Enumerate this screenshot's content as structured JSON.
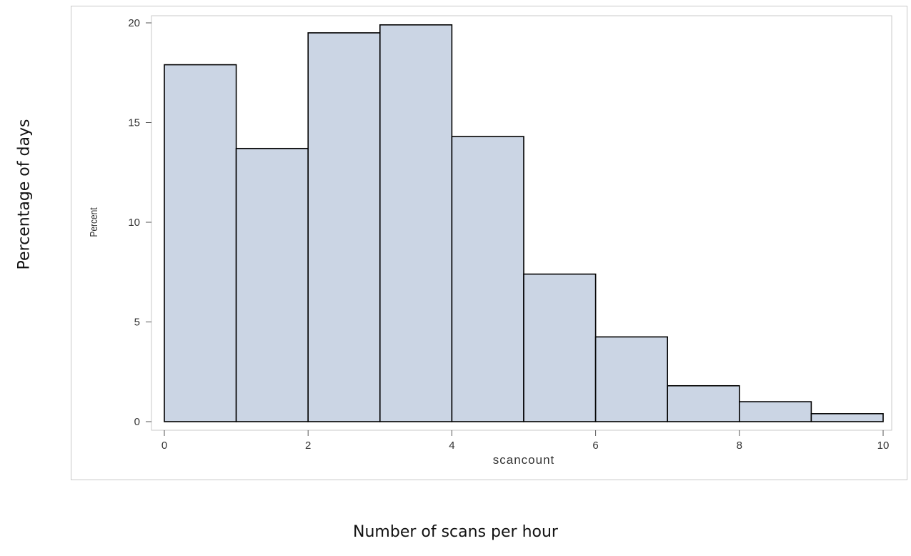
{
  "outer_labels": {
    "y": "Percentage of days",
    "x": "Number of scans per hour"
  },
  "chart_data": {
    "type": "bar",
    "bins": [
      [
        0,
        1
      ],
      [
        1,
        2
      ],
      [
        2,
        3
      ],
      [
        3,
        4
      ],
      [
        4,
        5
      ],
      [
        5,
        6
      ],
      [
        6,
        7
      ],
      [
        7,
        8
      ],
      [
        8,
        9
      ],
      [
        9,
        10
      ]
    ],
    "values": [
      17.9,
      13.7,
      19.5,
      19.9,
      14.3,
      7.4,
      4.25,
      1.8,
      1.0,
      0.4
    ],
    "xlabel": "scancount",
    "ylabel": "Percent",
    "xlim": [
      0,
      10
    ],
    "ylim": [
      0,
      20
    ],
    "xticks": [
      0,
      2,
      4,
      6,
      8,
      10
    ],
    "yticks": [
      0,
      5,
      10,
      15,
      20
    ],
    "grid": false,
    "bar_fill": "#cbd5e4",
    "bar_stroke": "#000000"
  }
}
